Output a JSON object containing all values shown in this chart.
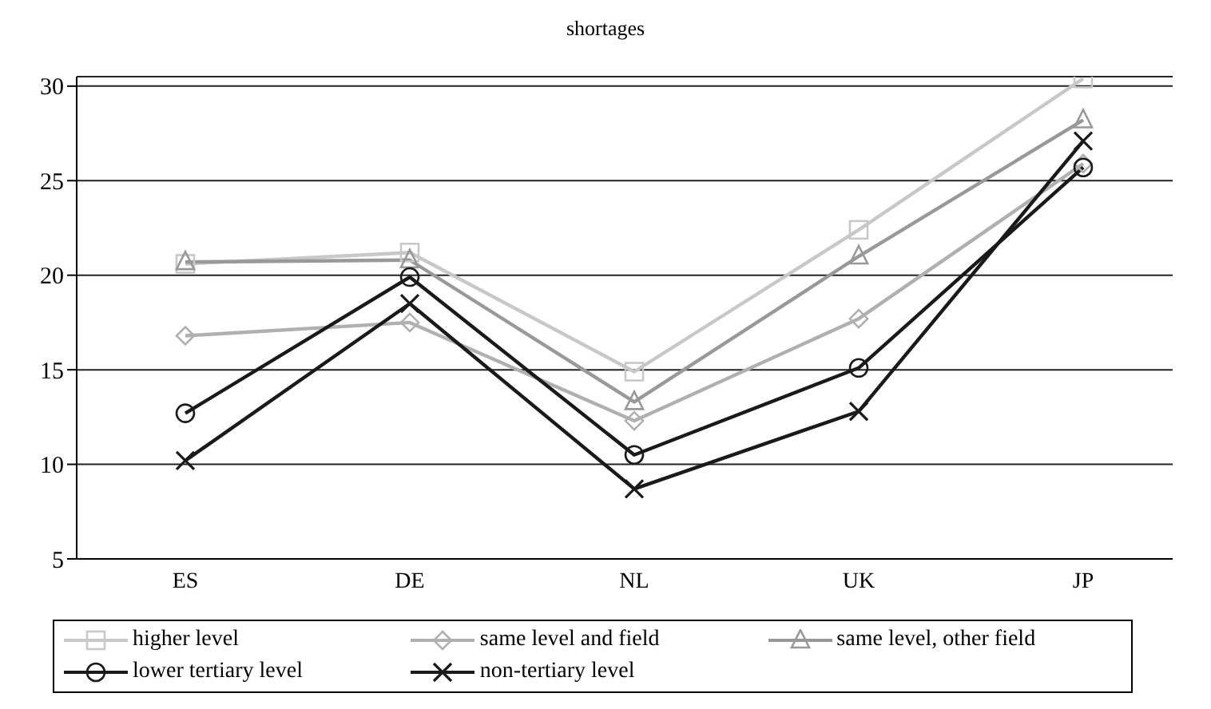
{
  "chart_data": {
    "type": "line",
    "title": "shortages",
    "categories": [
      "ES",
      "DE",
      "NL",
      "UK",
      "JP"
    ],
    "series": [
      {
        "name": "higher level",
        "color": "#c8c8c8",
        "marker": "square",
        "values": [
          20.6,
          21.2,
          14.9,
          22.4,
          30.4
        ]
      },
      {
        "name": "same level and field",
        "color": "#b0b0b0",
        "marker": "diamond",
        "values": [
          16.8,
          17.5,
          12.3,
          17.7,
          25.9
        ]
      },
      {
        "name": "same level, other field",
        "color": "#999999",
        "marker": "triangle",
        "values": [
          20.7,
          20.8,
          13.3,
          21.0,
          28.2
        ]
      },
      {
        "name": "lower tertiary level",
        "color": "#1a1a1a",
        "marker": "circle",
        "values": [
          12.7,
          19.9,
          10.5,
          15.1,
          25.7
        ]
      },
      {
        "name": "non-tertiary level",
        "color": "#1a1a1a",
        "marker": "cross",
        "values": [
          10.2,
          18.5,
          8.7,
          12.8,
          27.1
        ]
      }
    ],
    "ylim": [
      5,
      30.5
    ],
    "yticks": [
      5,
      10,
      15,
      20,
      25,
      30
    ],
    "grid": "y",
    "legend": "bottom",
    "line_style": "solid"
  }
}
